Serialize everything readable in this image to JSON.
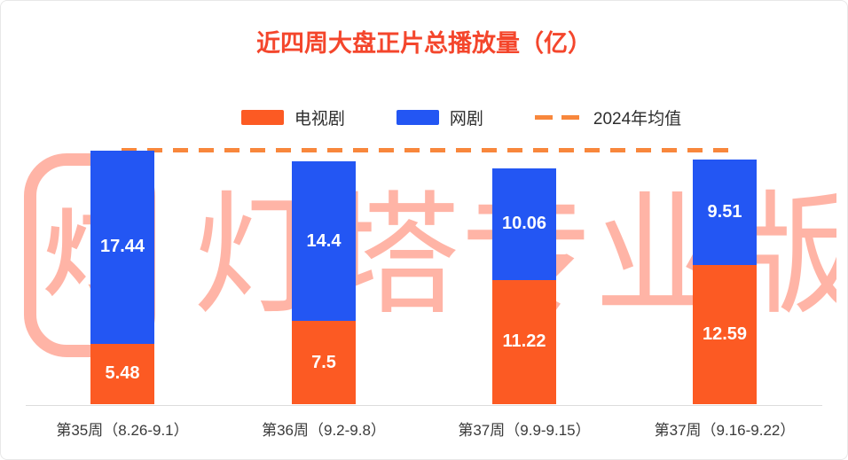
{
  "watermark": {
    "text": "灯塔专业版",
    "logo_char": "灯",
    "color": "#ff765c"
  },
  "chart_data": {
    "type": "bar",
    "stacked": true,
    "title": "近四周大盘正片总播放量（亿）",
    "categories": [
      "第35周（8.26-9.1）",
      "第36周（9.2-9.8）",
      "第37周（9.9-9.15）",
      "第37周（9.16-9.22）"
    ],
    "series": [
      {
        "name": "电视剧",
        "color": "#fc5a23",
        "values": [
          5.48,
          7.5,
          11.22,
          12.59
        ],
        "labels": [
          "5.48",
          "7.5",
          "11.22",
          "12.59"
        ]
      },
      {
        "name": "网剧",
        "color": "#2356f3",
        "values": [
          17.44,
          14.4,
          10.06,
          9.51
        ],
        "labels": [
          "17.44",
          "14.4",
          "10.06",
          "9.51"
        ]
      }
    ],
    "reference_line": {
      "label": "2024年均值",
      "value": 23,
      "color": "#f8873c",
      "style": "dashed"
    },
    "ylim": [
      0,
      24
    ],
    "grid": false,
    "legend_position": "top",
    "value_label_color": "#ffffff",
    "title_color": "#f4462c"
  }
}
